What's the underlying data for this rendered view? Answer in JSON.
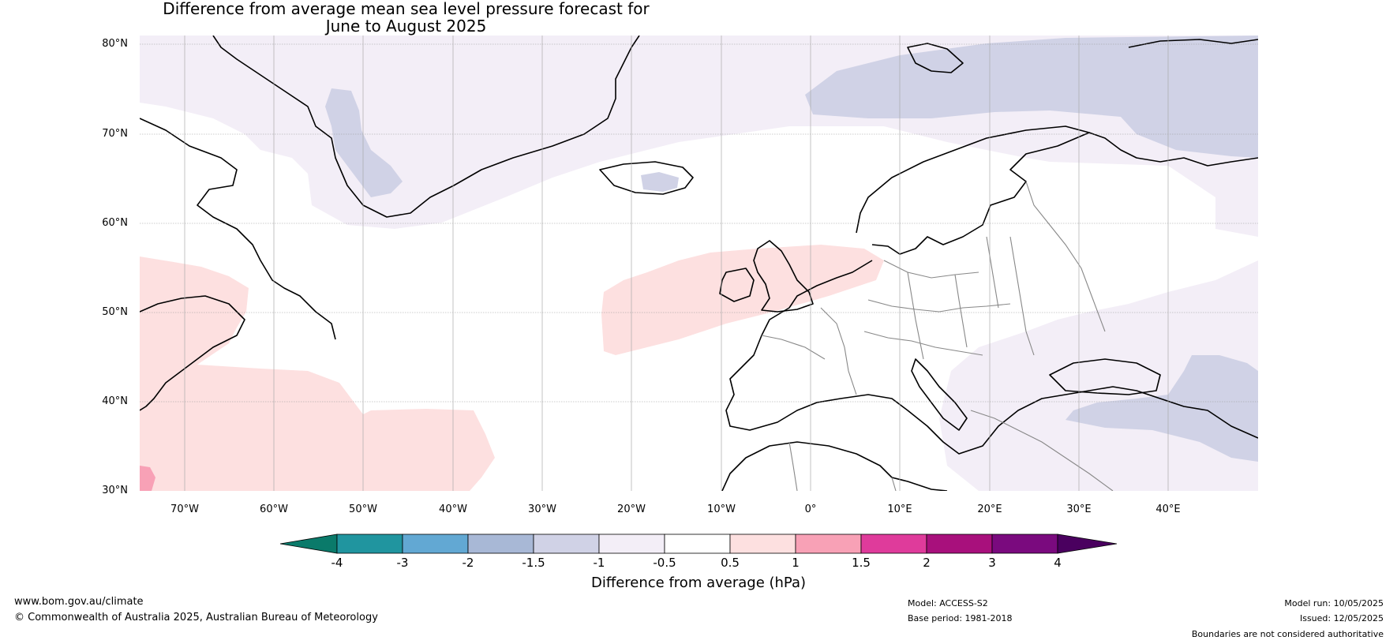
{
  "title": {
    "line1": "Difference from average mean sea level pressure forecast for",
    "line2": "June to August 2025"
  },
  "map": {
    "lat_labels": [
      "80°N",
      "70°N",
      "60°N",
      "50°N",
      "40°N",
      "30°N"
    ],
    "lon_labels": [
      "70°W",
      "60°W",
      "50°W",
      "40°W",
      "30°W",
      "20°W",
      "10°W",
      "0°",
      "10°E",
      "20°E",
      "30°E",
      "40°E"
    ],
    "land_colour": "#ffffff",
    "coastline_colour": "#000000",
    "border_colour": "#888888",
    "grid_colour": "#999999"
  },
  "legend": {
    "title": "Difference from average (hPa)",
    "ticks": [
      "-4",
      "-3",
      "-2",
      "-1.5",
      "-1",
      "-0.5",
      "0.5",
      "1",
      "1.5",
      "2",
      "3",
      "4"
    ],
    "colors": {
      "below_-4": "#0a7a6a",
      "-4_-3": "#20959f",
      "-3_-2": "#62a8d3",
      "-2_-1.5": "#a8b8d6",
      "-1.5_-1": "#d0d2e6",
      "-1_-0.5": "#f3eef7",
      "-0.5_0.5": "#ffffff",
      "0.5_1": "#fde0e0",
      "1_1.5": "#f8a1b6",
      "1.5_2": "#df3b9b",
      "2_3": "#a8107c",
      "3_4": "#7a0a7e",
      "above_4": "#4a005f"
    }
  },
  "footer": {
    "website": "www.bom.gov.au/climate",
    "copyright": "© Commonwealth of Australia 2025, Australian Bureau of Meteorology",
    "model": "Model: ACCESS-S2",
    "base_period": "Base period: 1981-2018",
    "model_run": "Model run: 10/05/2025",
    "issued": "Issued: 12/05/2025",
    "disclaimer": "Boundaries are not considered authoritative"
  }
}
